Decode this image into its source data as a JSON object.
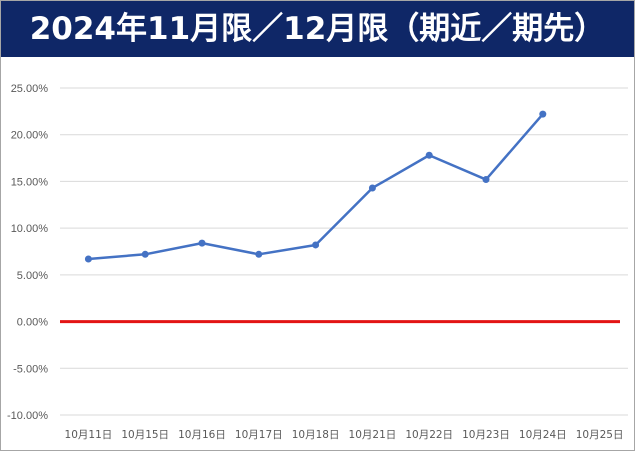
{
  "banner": {
    "title": "2024年11月限／12月限（期近／期先）"
  },
  "colors": {
    "banner_bg": "#0f2767",
    "series": "#4472c4",
    "zero_line": "#e31414",
    "grid": "#d9d9d9"
  },
  "chart_data": {
    "type": "line",
    "title": "",
    "xlabel": "",
    "ylabel": "",
    "categories": [
      "10月11日",
      "10月15日",
      "10月16日",
      "10月17日",
      "10月18日",
      "10月21日",
      "10月22日",
      "10月23日",
      "10月24日",
      "10月25日"
    ],
    "series": [
      {
        "values": [
          6.7,
          7.2,
          8.4,
          7.2,
          8.2,
          14.3,
          17.8,
          15.2,
          22.2,
          null
        ]
      }
    ],
    "ylim": [
      -10,
      25
    ],
    "yticks": [
      25,
      20,
      15,
      10,
      5,
      0,
      -5,
      -10
    ],
    "ytick_labels": [
      "25.00%",
      "20.00%",
      "15.00%",
      "10.00%",
      "5.00%",
      "0.00%",
      "-5.00%",
      "-10.00%"
    ],
    "reference_line": {
      "y": 0
    },
    "grid": true,
    "legend": "none"
  }
}
